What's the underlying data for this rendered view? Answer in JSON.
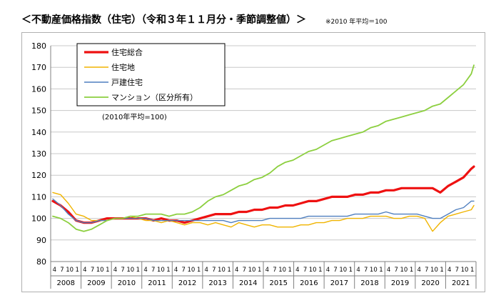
{
  "title": "＜不動産価格指数（住宅）（令和３年１１月分・季節調整値）＞",
  "note": "※2010 年平均＝100",
  "chart_data": {
    "type": "line",
    "annotation": "(2010年平均=100)",
    "ylim": [
      80,
      180
    ],
    "y_ticks": [
      80,
      90,
      100,
      110,
      120,
      130,
      140,
      150,
      160,
      170,
      180
    ],
    "grid": true,
    "legend_position": "top-left",
    "month_tick_labels": [
      "4",
      "7",
      "10",
      "1"
    ],
    "years": [
      "2008",
      "2009",
      "2010",
      "2011",
      "2012",
      "2013",
      "2014",
      "2015",
      "2016",
      "2017",
      "2018",
      "2019",
      "2020",
      "2021"
    ],
    "x": [
      "2008-04",
      "2008-07",
      "2008-10",
      "2009-01",
      "2009-04",
      "2009-07",
      "2009-10",
      "2010-01",
      "2010-04",
      "2010-07",
      "2010-10",
      "2011-01",
      "2011-04",
      "2011-07",
      "2011-10",
      "2012-01",
      "2012-04",
      "2012-07",
      "2012-10",
      "2013-01",
      "2013-04",
      "2013-07",
      "2013-10",
      "2014-01",
      "2014-04",
      "2014-07",
      "2014-10",
      "2015-01",
      "2015-04",
      "2015-07",
      "2015-10",
      "2016-01",
      "2016-04",
      "2016-07",
      "2016-10",
      "2017-01",
      "2017-04",
      "2017-07",
      "2017-10",
      "2018-01",
      "2018-04",
      "2018-07",
      "2018-10",
      "2019-01",
      "2019-04",
      "2019-07",
      "2019-10",
      "2020-01",
      "2020-04",
      "2020-07",
      "2020-10",
      "2021-01",
      "2021-04",
      "2021-07",
      "2021-10",
      "2021-11"
    ],
    "series": [
      {
        "name": "住宅総合",
        "color": "#ee1111",
        "width": 3.2,
        "values": [
          108,
          106,
          103,
          99,
          98,
          98,
          99,
          100,
          100,
          100,
          100,
          100,
          100,
          99,
          100,
          99,
          99,
          98,
          99,
          100,
          101,
          102,
          102,
          102,
          103,
          103,
          104,
          104,
          105,
          105,
          106,
          106,
          107,
          108,
          108,
          109,
          110,
          110,
          110,
          111,
          111,
          112,
          112,
          113,
          113,
          114,
          114,
          114,
          114,
          114,
          112,
          115,
          117,
          119,
          123,
          124
        ]
      },
      {
        "name": "住宅地",
        "color": "#f0b400",
        "width": 1.4,
        "values": [
          112,
          111,
          107,
          102,
          101,
          99,
          99,
          99,
          100,
          100,
          101,
          100,
          99,
          99,
          98,
          99,
          98,
          97,
          98,
          98,
          97,
          98,
          97,
          96,
          98,
          97,
          96,
          97,
          97,
          96,
          96,
          96,
          97,
          97,
          98,
          98,
          99,
          99,
          100,
          100,
          100,
          101,
          101,
          101,
          100,
          100,
          101,
          101,
          100,
          94,
          98,
          101,
          102,
          103,
          104,
          106
        ]
      },
      {
        "name": "戸建住宅",
        "color": "#4f7fbf",
        "width": 1.4,
        "values": [
          109,
          106,
          102,
          99,
          98,
          98,
          99,
          99,
          100,
          100,
          100,
          100,
          100,
          99,
          99,
          99,
          99,
          99,
          99,
          99,
          99,
          99,
          99,
          98,
          99,
          99,
          99,
          99,
          100,
          100,
          100,
          100,
          100,
          101,
          101,
          101,
          101,
          101,
          101,
          102,
          102,
          102,
          102,
          103,
          102,
          102,
          102,
          102,
          101,
          100,
          100,
          102,
          104,
          105,
          108,
          108
        ]
      },
      {
        "name": "マンション（区分所有）",
        "color": "#8ccf3f",
        "width": 1.8,
        "values": [
          101,
          100,
          98,
          95,
          94,
          95,
          97,
          99,
          100,
          100,
          101,
          101,
          102,
          102,
          102,
          101,
          102,
          102,
          103,
          105,
          108,
          110,
          111,
          113,
          115,
          116,
          118,
          119,
          121,
          124,
          126,
          127,
          129,
          131,
          132,
          134,
          136,
          137,
          138,
          139,
          140,
          142,
          143,
          145,
          146,
          147,
          148,
          149,
          150,
          152,
          153,
          156,
          159,
          162,
          167,
          171
        ]
      }
    ]
  }
}
